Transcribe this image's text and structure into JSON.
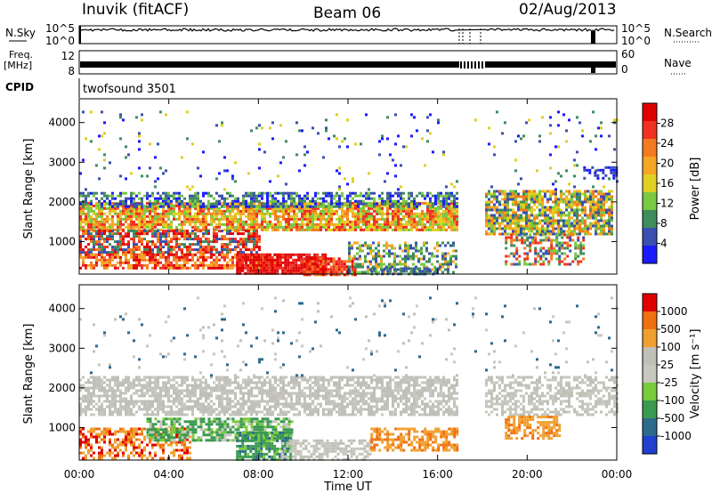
{
  "header": {
    "station": "Inuvik (fitACF)",
    "beam": "Beam 06",
    "date": "02/Aug/2013"
  },
  "labels": {
    "nsky": "N.Sky",
    "nsearch": "N.Search",
    "freq": "Freq.",
    "mhz": "[MHz]",
    "nave": "Nave",
    "cpid": "CPID",
    "cpid_value": "twofsound 3501",
    "time_ut": "Time UT"
  },
  "noise_panel": {
    "left_ticks": [
      "10^5",
      "10^0"
    ],
    "right_ticks": [
      "10^5",
      "10^0"
    ]
  },
  "freq_panel": {
    "left_ticks": [
      "12",
      "8"
    ],
    "right_ticks": [
      "60",
      "0"
    ]
  },
  "colors": {
    "power_scale": [
      "#1a1aff",
      "#3a4fb0",
      "#3f8c5c",
      "#7ac943",
      "#e0d020",
      "#f5a623",
      "#f47a1f",
      "#f03020",
      "#e00000"
    ],
    "velocity_scale": [
      "#2040d0",
      "#2c6a8c",
      "#3a9a50",
      "#7acb3a",
      "#c8c8c0",
      "#c0c0b8",
      "#f0a030",
      "#f07010",
      "#e00000"
    ]
  },
  "chart_data": [
    {
      "type": "heatmap",
      "ylabel": "Slant Range [km]",
      "xlabel": "Time UT",
      "x_ticks": [
        "00:00",
        "04:00",
        "08:00",
        "12:00",
        "16:00",
        "20:00",
        "00:00"
      ],
      "y_ticks": [
        "1000",
        "2000",
        "3000",
        "4000"
      ],
      "xlim_hours": [
        0,
        24
      ],
      "ylim_km": [
        180,
        4600
      ],
      "colorbar": {
        "label": "Power [dB]",
        "ticks": [
          "4",
          "8",
          "12",
          "16",
          "20",
          "24",
          "28"
        ],
        "range": [
          0,
          30
        ]
      }
    },
    {
      "type": "heatmap",
      "ylabel": "Slant Range [km]",
      "xlabel": "Time UT",
      "x_ticks": [
        "00:00",
        "04:00",
        "08:00",
        "12:00",
        "16:00",
        "20:00",
        "00:00"
      ],
      "y_ticks": [
        "1000",
        "2000",
        "3000",
        "4000"
      ],
      "xlim_hours": [
        0,
        24
      ],
      "ylim_km": [
        180,
        4600
      ],
      "colorbar": {
        "label": "Velocity [m s⁻¹]",
        "ticks": [
          "1000",
          "500",
          "100",
          "25",
          "-25",
          "-100",
          "-500",
          "-1000"
        ]
      }
    }
  ]
}
